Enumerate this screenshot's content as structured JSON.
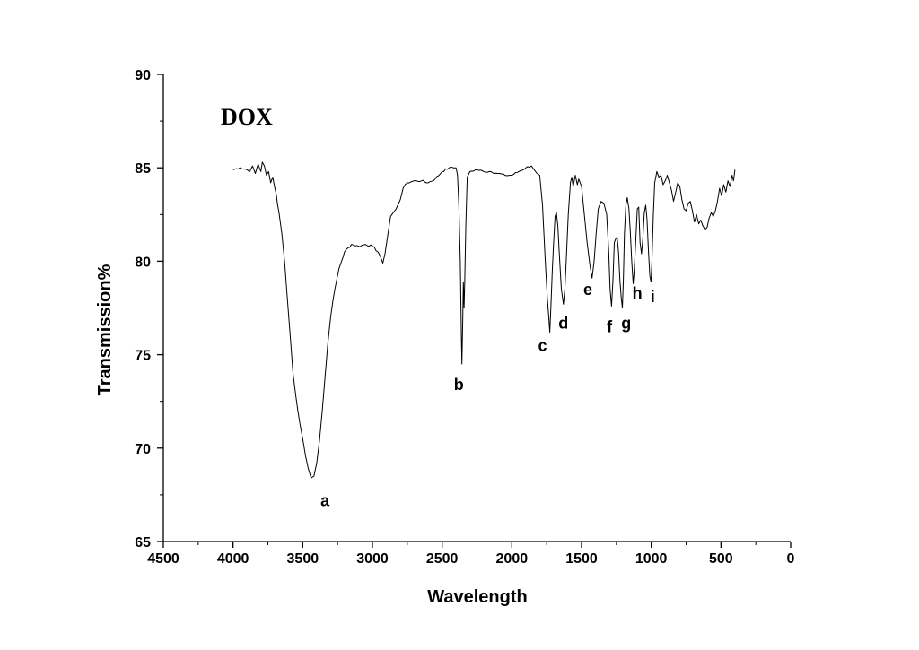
{
  "chart_data": {
    "type": "line",
    "title": "DOX",
    "xlabel": "Wavelength",
    "ylabel": "Transmission%",
    "xlim": [
      4500,
      0
    ],
    "ylim": [
      65,
      90
    ],
    "x_ticks": [
      "4500",
      "4000",
      "3500",
      "3000",
      "2500",
      "2000",
      "1500",
      "1000",
      "500",
      "0"
    ],
    "y_ticks": [
      "65",
      "70",
      "75",
      "80",
      "85",
      "90"
    ],
    "grid": false,
    "series": [
      {
        "points": [
          [
            4000,
            84.9
          ],
          [
            3950,
            85.0
          ],
          [
            3900,
            84.9
          ],
          [
            3880,
            84.8
          ],
          [
            3860,
            85.1
          ],
          [
            3840,
            84.7
          ],
          [
            3820,
            85.2
          ],
          [
            3800,
            84.8
          ],
          [
            3790,
            85.3
          ],
          [
            3775,
            85.1
          ],
          [
            3760,
            84.6
          ],
          [
            3745,
            84.8
          ],
          [
            3730,
            84.2
          ],
          [
            3715,
            84.5
          ],
          [
            3700,
            83.9
          ],
          [
            3690,
            83.6
          ],
          [
            3680,
            83.0
          ],
          [
            3670,
            82.6
          ],
          [
            3650,
            81.5
          ],
          [
            3630,
            80.0
          ],
          [
            3610,
            78.0
          ],
          [
            3590,
            76.0
          ],
          [
            3570,
            74.0
          ],
          [
            3550,
            72.8
          ],
          [
            3520,
            71.3
          ],
          [
            3500,
            70.5
          ],
          [
            3480,
            69.6
          ],
          [
            3460,
            68.9
          ],
          [
            3440,
            68.4
          ],
          [
            3420,
            68.5
          ],
          [
            3400,
            69.2
          ],
          [
            3380,
            70.4
          ],
          [
            3360,
            72.0
          ],
          [
            3340,
            73.8
          ],
          [
            3320,
            75.6
          ],
          [
            3300,
            77.0
          ],
          [
            3270,
            78.5
          ],
          [
            3240,
            79.6
          ],
          [
            3200,
            80.5
          ],
          [
            3150,
            80.9
          ],
          [
            3100,
            80.8
          ],
          [
            3050,
            80.9
          ],
          [
            3000,
            80.8
          ],
          [
            2960,
            80.5
          ],
          [
            2940,
            80.2
          ],
          [
            2925,
            79.9
          ],
          [
            2910,
            80.4
          ],
          [
            2890,
            81.4
          ],
          [
            2870,
            82.4
          ],
          [
            2850,
            82.6
          ],
          [
            2830,
            82.8
          ],
          [
            2800,
            83.3
          ],
          [
            2780,
            83.9
          ],
          [
            2750,
            84.2
          ],
          [
            2700,
            84.3
          ],
          [
            2650,
            84.3
          ],
          [
            2600,
            84.2
          ],
          [
            2550,
            84.4
          ],
          [
            2500,
            84.8
          ],
          [
            2450,
            85.0
          ],
          [
            2420,
            85.0
          ],
          [
            2400,
            85.0
          ],
          [
            2390,
            84.6
          ],
          [
            2380,
            83.0
          ],
          [
            2370,
            80.0
          ],
          [
            2362,
            76.0
          ],
          [
            2358,
            74.5
          ],
          [
            2352,
            77.0
          ],
          [
            2348,
            78.9
          ],
          [
            2343,
            77.5
          ],
          [
            2338,
            78.8
          ],
          [
            2330,
            82.0
          ],
          [
            2320,
            84.5
          ],
          [
            2300,
            84.8
          ],
          [
            2250,
            84.9
          ],
          [
            2200,
            84.8
          ],
          [
            2150,
            84.8
          ],
          [
            2100,
            84.7
          ],
          [
            2050,
            84.6
          ],
          [
            2000,
            84.6
          ],
          [
            1950,
            84.8
          ],
          [
            1900,
            85.0
          ],
          [
            1860,
            85.1
          ],
          [
            1840,
            84.9
          ],
          [
            1820,
            84.7
          ],
          [
            1800,
            84.6
          ],
          [
            1780,
            83.0
          ],
          [
            1760,
            80.0
          ],
          [
            1745,
            78.0
          ],
          [
            1735,
            77.0
          ],
          [
            1728,
            76.2
          ],
          [
            1720,
            77.5
          ],
          [
            1710,
            79.5
          ],
          [
            1700,
            81.0
          ],
          [
            1690,
            82.4
          ],
          [
            1680,
            82.6
          ],
          [
            1670,
            81.9
          ],
          [
            1660,
            80.5
          ],
          [
            1645,
            78.5
          ],
          [
            1630,
            77.7
          ],
          [
            1620,
            78.5
          ],
          [
            1610,
            80.0
          ],
          [
            1595,
            82.5
          ],
          [
            1580,
            84.2
          ],
          [
            1570,
            84.5
          ],
          [
            1560,
            84.0
          ],
          [
            1545,
            84.6
          ],
          [
            1530,
            84.1
          ],
          [
            1520,
            84.4
          ],
          [
            1500,
            84.0
          ],
          [
            1480,
            82.5
          ],
          [
            1460,
            81.0
          ],
          [
            1440,
            79.8
          ],
          [
            1425,
            79.1
          ],
          [
            1410,
            80.0
          ],
          [
            1395,
            81.5
          ],
          [
            1380,
            82.8
          ],
          [
            1360,
            83.2
          ],
          [
            1340,
            83.1
          ],
          [
            1320,
            82.5
          ],
          [
            1305,
            80.5
          ],
          [
            1295,
            78.5
          ],
          [
            1285,
            77.6
          ],
          [
            1275,
            79.0
          ],
          [
            1265,
            81.0
          ],
          [
            1255,
            81.2
          ],
          [
            1245,
            81.3
          ],
          [
            1235,
            80.5
          ],
          [
            1225,
            79.0
          ],
          [
            1215,
            78.0
          ],
          [
            1207,
            77.5
          ],
          [
            1200,
            79.0
          ],
          [
            1192,
            81.5
          ],
          [
            1182,
            83.0
          ],
          [
            1172,
            83.4
          ],
          [
            1160,
            82.8
          ],
          [
            1150,
            81.5
          ],
          [
            1140,
            80.0
          ],
          [
            1130,
            78.8
          ],
          [
            1122,
            79.5
          ],
          [
            1112,
            81.0
          ],
          [
            1100,
            82.8
          ],
          [
            1090,
            82.9
          ],
          [
            1080,
            81.0
          ],
          [
            1070,
            80.4
          ],
          [
            1060,
            81.2
          ],
          [
            1050,
            82.6
          ],
          [
            1040,
            83.0
          ],
          [
            1030,
            82.2
          ],
          [
            1020,
            80.5
          ],
          [
            1010,
            79.2
          ],
          [
            1002,
            78.9
          ],
          [
            995,
            80.0
          ],
          [
            985,
            82.5
          ],
          [
            975,
            84.2
          ],
          [
            960,
            84.8
          ],
          [
            945,
            84.5
          ],
          [
            930,
            84.6
          ],
          [
            915,
            84.1
          ],
          [
            900,
            84.3
          ],
          [
            885,
            84.6
          ],
          [
            870,
            84.2
          ],
          [
            855,
            83.8
          ],
          [
            840,
            83.2
          ],
          [
            825,
            83.7
          ],
          [
            810,
            84.2
          ],
          [
            795,
            84.0
          ],
          [
            780,
            83.3
          ],
          [
            765,
            82.8
          ],
          [
            750,
            82.7
          ],
          [
            735,
            83.1
          ],
          [
            720,
            83.2
          ],
          [
            705,
            82.7
          ],
          [
            690,
            82.1
          ],
          [
            675,
            82.5
          ],
          [
            660,
            82.0
          ],
          [
            645,
            82.2
          ],
          [
            630,
            81.9
          ],
          [
            615,
            81.7
          ],
          [
            600,
            81.8
          ],
          [
            585,
            82.3
          ],
          [
            570,
            82.6
          ],
          [
            555,
            82.4
          ],
          [
            540,
            82.7
          ],
          [
            525,
            83.2
          ],
          [
            510,
            83.9
          ],
          [
            495,
            83.5
          ],
          [
            480,
            84.1
          ],
          [
            465,
            83.7
          ],
          [
            450,
            84.3
          ],
          [
            435,
            84.0
          ],
          [
            420,
            84.6
          ],
          [
            410,
            84.3
          ],
          [
            400,
            84.9
          ]
        ]
      }
    ],
    "annotations": [
      {
        "text": "a",
        "x": 3340,
        "y": 66.9
      },
      {
        "text": "b",
        "x": 2380,
        "y": 73.1
      },
      {
        "text": "c",
        "x": 1780,
        "y": 75.2
      },
      {
        "text": "d",
        "x": 1630,
        "y": 76.4
      },
      {
        "text": "e",
        "x": 1455,
        "y": 78.2
      },
      {
        "text": "f",
        "x": 1300,
        "y": 76.2
      },
      {
        "text": "g",
        "x": 1180,
        "y": 76.4
      },
      {
        "text": "h",
        "x": 1100,
        "y": 78.0
      },
      {
        "text": "i",
        "x": 990,
        "y": 77.8
      }
    ]
  }
}
